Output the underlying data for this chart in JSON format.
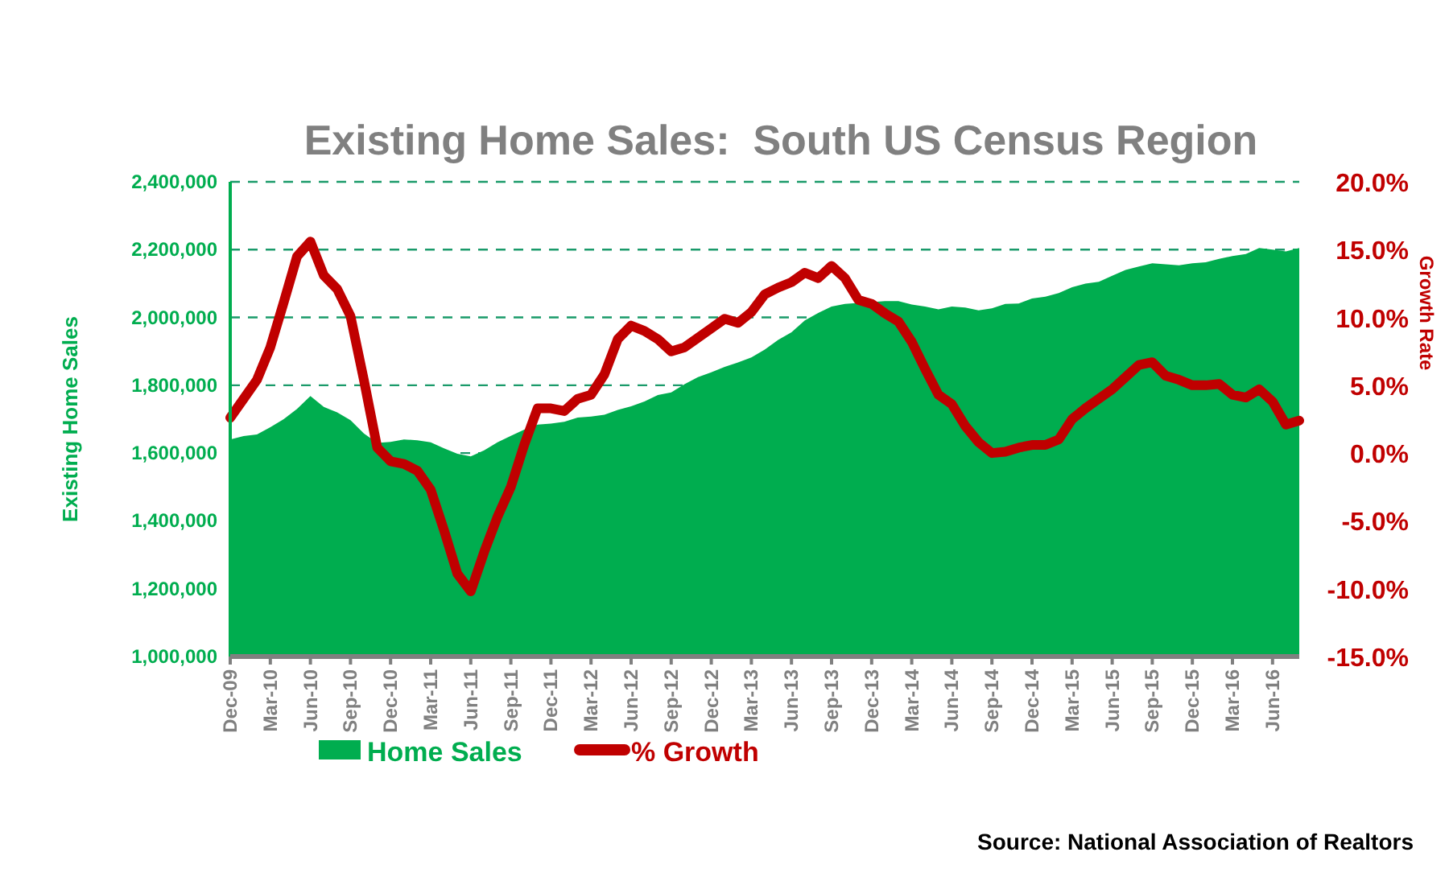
{
  "chart_data": {
    "type": "area",
    "title": "Existing Home Sales:  South US Census Region",
    "ylabel": "Existing Home Sales",
    "y2label": "Growth Rate",
    "categories": [
      "Dec-09",
      null,
      null,
      "Mar-10",
      null,
      null,
      "Jun-10",
      null,
      null,
      "Sep-10",
      null,
      null,
      "Dec-10",
      null,
      null,
      "Mar-11",
      null,
      null,
      "Jun-11",
      null,
      null,
      "Sep-11",
      null,
      null,
      "Dec-11",
      null,
      null,
      "Mar-12",
      null,
      null,
      "Jun-12",
      null,
      null,
      "Sep-12",
      null,
      null,
      "Dec-12",
      null,
      null,
      "Mar-13",
      null,
      null,
      "Jun-13",
      null,
      null,
      "Sep-13",
      null,
      null,
      "Dec-13",
      null,
      null,
      "Mar-14",
      null,
      null,
      "Jun-14",
      null,
      null,
      "Sep-14",
      null,
      null,
      "Dec-14",
      null,
      null,
      "Mar-15",
      null,
      null,
      "Jun-15",
      null,
      null,
      "Sep-15",
      null,
      null,
      "Dec-15",
      null,
      null,
      "Mar-16",
      null,
      null,
      "Jun-16",
      null,
      null
    ],
    "series": [
      {
        "name": "Home Sales",
        "color": "#00ad4f",
        "values": [
          1640000,
          1650000,
          1655000,
          1676000,
          1700000,
          1730000,
          1768000,
          1736000,
          1720000,
          1697000,
          1658000,
          1630000,
          1633000,
          1640000,
          1638000,
          1632000,
          1614000,
          1598000,
          1590000,
          1608000,
          1632000,
          1651000,
          1669000,
          1684000,
          1687000,
          1692000,
          1705000,
          1708000,
          1713000,
          1727000,
          1738000,
          1752000,
          1771000,
          1779000,
          1803000,
          1824000,
          1838000,
          1854000,
          1867000,
          1882000,
          1905000,
          1934000,
          1956000,
          1991000,
          2013000,
          2032000,
          2040000,
          2043000,
          2045000,
          2048000,
          2048000,
          2038000,
          2032000,
          2024000,
          2032000,
          2029000,
          2021000,
          2027000,
          2040000,
          2041000,
          2056000,
          2061000,
          2072000,
          2089000,
          2100000,
          2105000,
          2123000,
          2140000,
          2150000,
          2160000,
          2157000,
          2154000,
          2160000,
          2163000,
          2173000,
          2181000,
          2187000,
          2205000,
          2200000,
          2195000,
          2205000
        ]
      },
      {
        "name": "% Growth",
        "type": "line",
        "axis": "y2",
        "color": "#c00000",
        "values": [
          2.6,
          4.0,
          5.4,
          7.8,
          11.1,
          14.5,
          15.6,
          13.1,
          12.1,
          10.1,
          5.4,
          0.4,
          -0.6,
          -0.8,
          -1.3,
          -2.7,
          -5.7,
          -8.9,
          -10.2,
          -7.3,
          -4.7,
          -2.5,
          0.6,
          3.3,
          3.3,
          3.1,
          4.0,
          4.3,
          5.8,
          8.4,
          9.4,
          9.0,
          8.4,
          7.5,
          7.8,
          8.5,
          9.2,
          9.9,
          9.6,
          10.4,
          11.7,
          12.2,
          12.6,
          13.3,
          12.9,
          13.8,
          12.9,
          11.3,
          11.0,
          10.3,
          9.7,
          8.2,
          6.2,
          4.3,
          3.6,
          2.0,
          0.8,
          0.0,
          0.1,
          0.4,
          0.6,
          0.6,
          1.0,
          2.5,
          3.3,
          4.0,
          4.7,
          5.6,
          6.5,
          6.7,
          5.7,
          5.4,
          5.0,
          5.0,
          5.1,
          4.3,
          4.1,
          4.7,
          3.8,
          2.1,
          2.4
        ]
      }
    ],
    "ylim": [
      1000000,
      2400000
    ],
    "yticks": [
      {
        "value": 1000000,
        "label": "1,000,000"
      },
      {
        "value": 1200000,
        "label": "1,200,000"
      },
      {
        "value": 1400000,
        "label": "1,400,000"
      },
      {
        "value": 1600000,
        "label": "1,600,000"
      },
      {
        "value": 1800000,
        "label": "1,800,000"
      },
      {
        "value": 2000000,
        "label": "2,000,000"
      },
      {
        "value": 2200000,
        "label": "2,200,000"
      },
      {
        "value": 2400000,
        "label": "2,400,000"
      }
    ],
    "y2lim": [
      -15,
      20
    ],
    "y2ticks": [
      {
        "value": -15,
        "label": "-15.0%"
      },
      {
        "value": -10,
        "label": "-10.0%"
      },
      {
        "value": -5,
        "label": "-5.0%"
      },
      {
        "value": 0,
        "label": "0.0%"
      },
      {
        "value": 5,
        "label": "5.0%"
      },
      {
        "value": 10,
        "label": "10.0%"
      },
      {
        "value": 15,
        "label": "15.0%"
      },
      {
        "value": 20,
        "label": "20.0%"
      }
    ],
    "grid": "y",
    "legend": "bottom",
    "annotations": [
      "Source: National Association of Realtors"
    ]
  }
}
